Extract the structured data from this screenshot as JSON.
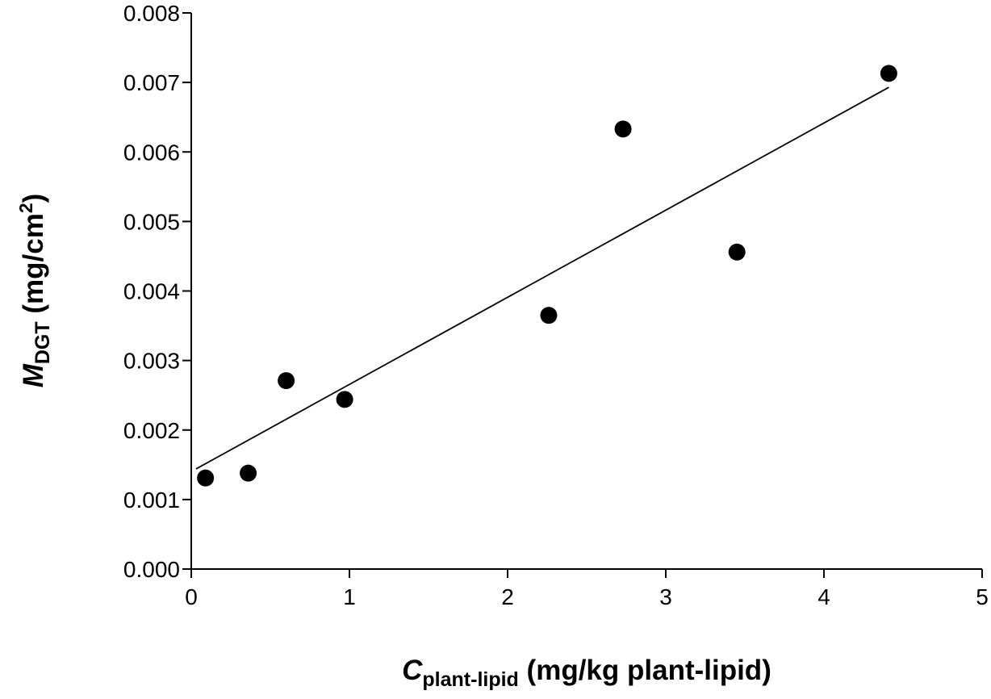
{
  "chart_data": {
    "type": "scatter",
    "title": "",
    "xlabel": {
      "main": "C",
      "sub": "plant-lipid",
      "rest": " (mg/kg plant-lipid)"
    },
    "ylabel": {
      "main": "M",
      "sub": "DGT",
      "rest": " (mg/cm",
      "sup": "2",
      "close": ")"
    },
    "xlim": [
      0,
      5
    ],
    "ylim": [
      0,
      0.008
    ],
    "xticks": [
      "0",
      "1",
      "2",
      "3",
      "4",
      "5"
    ],
    "yticks": [
      "0.000",
      "0.001",
      "0.002",
      "0.003",
      "0.004",
      "0.005",
      "0.006",
      "0.007",
      "0.008"
    ],
    "grid": false,
    "series": [
      {
        "name": "data",
        "x": [
          0.09,
          0.36,
          0.6,
          0.97,
          2.26,
          2.73,
          3.45,
          4.41
        ],
        "y": [
          0.00131,
          0.00138,
          0.00271,
          0.00244,
          0.00365,
          0.00633,
          0.00456,
          0.00713
        ]
      }
    ],
    "regression_line": {
      "x": [
        0.03,
        4.41
      ],
      "y": [
        0.00144,
        0.00693
      ]
    }
  }
}
